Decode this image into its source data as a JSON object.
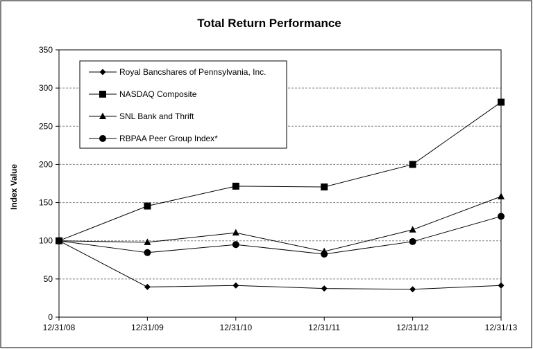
{
  "chart_data": {
    "type": "line",
    "title": "Total Return Performance",
    "xlabel": "",
    "ylabel": "Index Value",
    "categories": [
      "12/31/08",
      "12/31/09",
      "12/31/10",
      "12/31/11",
      "12/31/12",
      "12/31/13"
    ],
    "ylim": [
      0,
      350
    ],
    "yticks": [
      0,
      50,
      100,
      150,
      200,
      250,
      300,
      350
    ],
    "grid": "horizontal dashed",
    "legend_position": "top-left",
    "series": [
      {
        "name": "Royal Bancshares of Pennsylvania, Inc.",
        "marker": "diamond",
        "values": [
          100,
          39.5,
          41.5,
          37.5,
          36.5,
          41.5
        ]
      },
      {
        "name": "NASDAQ Composite",
        "marker": "square",
        "values": [
          100,
          145.5,
          171.5,
          170.5,
          200,
          281.5
        ]
      },
      {
        "name": "SNL Bank and Thrift",
        "marker": "triangle",
        "values": [
          100,
          98,
          110.5,
          86,
          114.5,
          158
        ]
      },
      {
        "name": "RBPAA Peer Group Index*",
        "marker": "circle",
        "values": [
          100,
          84.5,
          95,
          82.5,
          99,
          132
        ]
      }
    ]
  }
}
